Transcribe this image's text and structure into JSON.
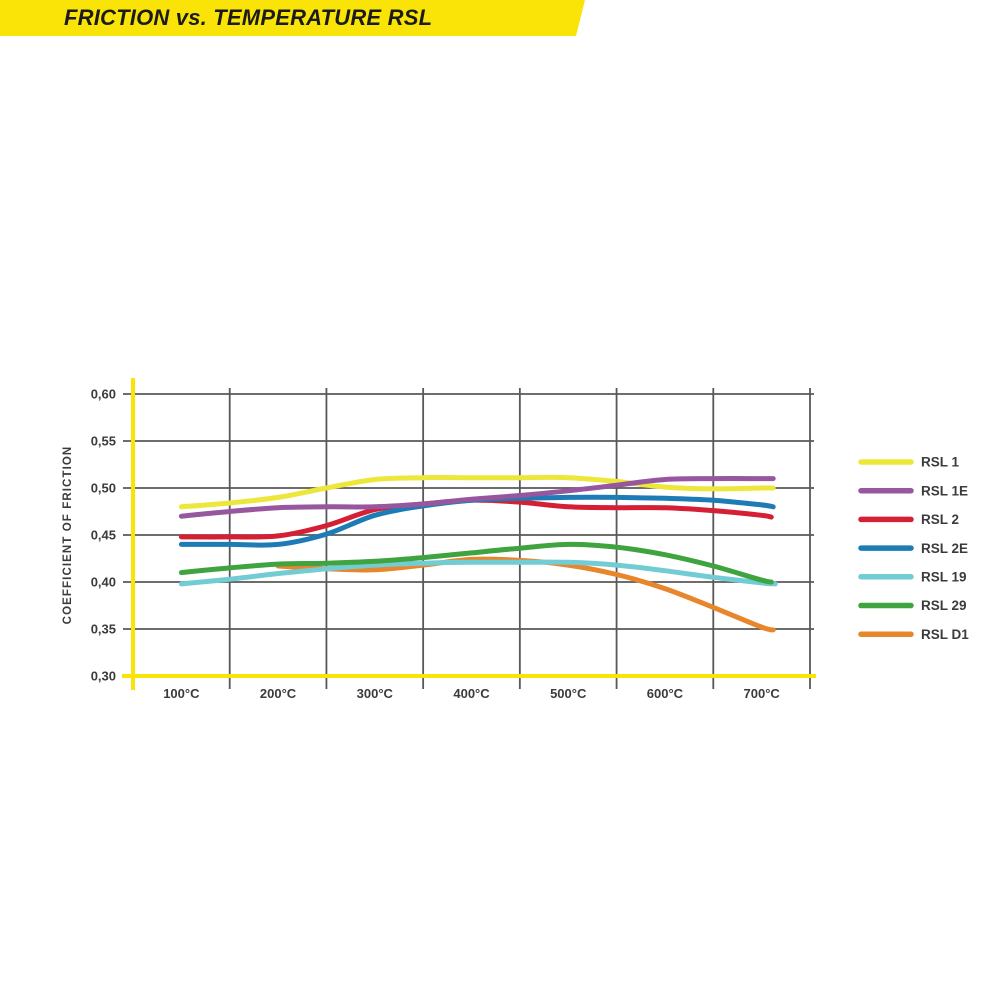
{
  "banner": {
    "title": "FRICTION vs. TEMPERATURE RSL",
    "background_color": "#FAE408",
    "text_color": "#1B1B1B"
  },
  "chart_data": {
    "type": "line",
    "title": "FRICTION vs. TEMPERATURE RSL",
    "ylabel": "COEFFICIENT OF FRICTION",
    "x_unit": "°C",
    "xlim": [
      50,
      750
    ],
    "ylim": [
      0.3,
      0.6
    ],
    "grid": "on",
    "grid_color": "#58585A",
    "axis_color": "#FAE408",
    "label_color": "#3B3B3D",
    "legend_position": "right",
    "x_ticks": [
      {
        "value": 100,
        "label": "100°C"
      },
      {
        "value": 200,
        "label": "200°C"
      },
      {
        "value": 300,
        "label": "300°C"
      },
      {
        "value": 400,
        "label": "400°C"
      },
      {
        "value": 500,
        "label": "500°C"
      },
      {
        "value": 600,
        "label": "600°C"
      },
      {
        "value": 700,
        "label": "700°C"
      }
    ],
    "y_ticks": [
      {
        "value": 0.6,
        "label": "0,60"
      },
      {
        "value": 0.55,
        "label": "0,55"
      },
      {
        "value": 0.5,
        "label": "0,50"
      },
      {
        "value": 0.45,
        "label": "0,45"
      },
      {
        "value": 0.4,
        "label": "0,40"
      },
      {
        "value": 0.35,
        "label": "0,35"
      },
      {
        "value": 0.3,
        "label": "0,30"
      }
    ],
    "grid_x_values": [
      150,
      250,
      350,
      450,
      550,
      650,
      750
    ],
    "series": [
      {
        "name": "RSL 1",
        "color": "#EDE73B",
        "points": [
          [
            100,
            0.48
          ],
          [
            150,
            0.484
          ],
          [
            200,
            0.49
          ],
          [
            250,
            0.5
          ],
          [
            300,
            0.509
          ],
          [
            350,
            0.511
          ],
          [
            400,
            0.511
          ],
          [
            450,
            0.511
          ],
          [
            500,
            0.511
          ],
          [
            550,
            0.507
          ],
          [
            600,
            0.501
          ],
          [
            650,
            0.499
          ],
          [
            700,
            0.5
          ],
          [
            712,
            0.5
          ]
        ]
      },
      {
        "name": "RSL 1E",
        "color": "#96579F",
        "points": [
          [
            100,
            0.47
          ],
          [
            150,
            0.475
          ],
          [
            200,
            0.479
          ],
          [
            250,
            0.48
          ],
          [
            300,
            0.48
          ],
          [
            350,
            0.483
          ],
          [
            400,
            0.488
          ],
          [
            450,
            0.492
          ],
          [
            500,
            0.497
          ],
          [
            550,
            0.503
          ],
          [
            600,
            0.509
          ],
          [
            650,
            0.51
          ],
          [
            700,
            0.51
          ],
          [
            712,
            0.51
          ]
        ]
      },
      {
        "name": "RSL 2",
        "color": "#D51F34",
        "points": [
          [
            100,
            0.448
          ],
          [
            150,
            0.448
          ],
          [
            200,
            0.449
          ],
          [
            250,
            0.46
          ],
          [
            300,
            0.477
          ],
          [
            350,
            0.483
          ],
          [
            400,
            0.487
          ],
          [
            450,
            0.485
          ],
          [
            500,
            0.48
          ],
          [
            550,
            0.479
          ],
          [
            600,
            0.479
          ],
          [
            650,
            0.476
          ],
          [
            700,
            0.471
          ],
          [
            710,
            0.469
          ]
        ]
      },
      {
        "name": "RSL 2E",
        "color": "#1D7CB5",
        "points": [
          [
            100,
            0.44
          ],
          [
            150,
            0.44
          ],
          [
            200,
            0.44
          ],
          [
            250,
            0.451
          ],
          [
            300,
            0.471
          ],
          [
            350,
            0.481
          ],
          [
            400,
            0.487
          ],
          [
            450,
            0.489
          ],
          [
            500,
            0.49
          ],
          [
            550,
            0.49
          ],
          [
            600,
            0.489
          ],
          [
            650,
            0.487
          ],
          [
            700,
            0.482
          ],
          [
            712,
            0.48
          ]
        ]
      },
      {
        "name": "RSL 19",
        "color": "#72CCD4",
        "points": [
          [
            100,
            0.398
          ],
          [
            150,
            0.403
          ],
          [
            200,
            0.409
          ],
          [
            250,
            0.414
          ],
          [
            300,
            0.418
          ],
          [
            350,
            0.42
          ],
          [
            400,
            0.421
          ],
          [
            450,
            0.421
          ],
          [
            500,
            0.421
          ],
          [
            550,
            0.418
          ],
          [
            600,
            0.412
          ],
          [
            650,
            0.405
          ],
          [
            700,
            0.399
          ],
          [
            714,
            0.398
          ]
        ]
      },
      {
        "name": "RSL 29",
        "color": "#3FA33F",
        "points": [
          [
            100,
            0.41
          ],
          [
            150,
            0.415
          ],
          [
            200,
            0.419
          ],
          [
            250,
            0.42
          ],
          [
            300,
            0.422
          ],
          [
            350,
            0.426
          ],
          [
            400,
            0.431
          ],
          [
            450,
            0.436
          ],
          [
            500,
            0.44
          ],
          [
            550,
            0.437
          ],
          [
            600,
            0.429
          ],
          [
            650,
            0.417
          ],
          [
            700,
            0.402
          ],
          [
            710,
            0.4
          ]
        ]
      },
      {
        "name": "RSL D1",
        "color": "#E8862B",
        "points": [
          [
            200,
            0.417
          ],
          [
            250,
            0.414
          ],
          [
            300,
            0.413
          ],
          [
            350,
            0.418
          ],
          [
            400,
            0.424
          ],
          [
            450,
            0.423
          ],
          [
            500,
            0.418
          ],
          [
            550,
            0.408
          ],
          [
            600,
            0.393
          ],
          [
            650,
            0.373
          ],
          [
            700,
            0.352
          ],
          [
            712,
            0.349
          ]
        ]
      }
    ]
  }
}
